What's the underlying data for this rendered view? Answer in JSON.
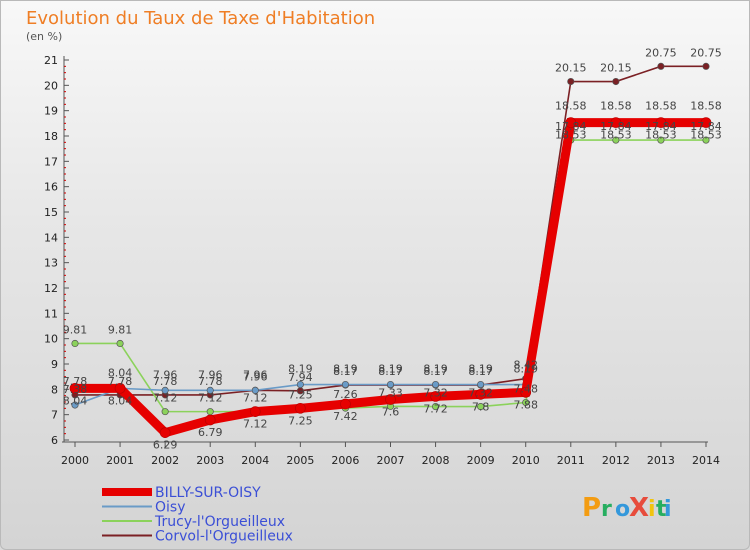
{
  "title": "Evolution du Taux de Taxe d'Habitation",
  "unit": "(en %)",
  "logo": {
    "text": "ProXiti",
    "letters": [
      "P",
      "r",
      "o",
      "X",
      "i",
      "t",
      "i"
    ],
    "colors": [
      "#f39c12",
      "#27ae60",
      "#3498db",
      "#e74c3c",
      "#f1c40f",
      "#27ae60",
      "#3498db"
    ]
  },
  "chart_data": {
    "type": "line",
    "title": "Evolution du Taux de Taxe d'Habitation",
    "ylabel": "(en %)",
    "xlabel": "",
    "ylim": [
      6,
      21
    ],
    "grid": false,
    "legend_position": "bottom-left",
    "categories": [
      "2000",
      "2001",
      "2002",
      "2003",
      "2004",
      "2005",
      "2006",
      "2007",
      "2008",
      "2009",
      "2010",
      "2011",
      "2012",
      "2013",
      "2014"
    ],
    "yticks": [
      "6",
      "7",
      "8",
      "9",
      "10",
      "11",
      "12",
      "13",
      "14",
      "15",
      "16",
      "17",
      "18",
      "19",
      "20",
      "21"
    ],
    "series": [
      {
        "name": "Corvol-l'Orgueilleux",
        "color": "#7b2024",
        "values": [
          7.78,
          7.78,
          7.78,
          7.78,
          7.96,
          7.94,
          8.17,
          8.17,
          8.17,
          8.17,
          8.42,
          20.15,
          20.15,
          20.75,
          20.75
        ],
        "labels": [
          "7.78",
          "7.78",
          "7.78",
          "7.78",
          "7.96",
          "7.94",
          "8.17",
          "8.17",
          "8.17",
          "8.17",
          "8.42",
          "20.15",
          "20.15",
          "20.75",
          "20.75"
        ]
      },
      {
        "name": "Trucy-l'Orgueilleux",
        "color": "#8bd25b",
        "values": [
          9.81,
          9.81,
          7.12,
          7.12,
          7.12,
          7.25,
          7.26,
          7.33,
          7.32,
          7.32,
          7.48,
          17.84,
          17.84,
          17.84,
          17.84
        ],
        "labels": [
          "9.81",
          "9.81",
          "7.12",
          "7.12",
          "7.12",
          "7.25",
          "7.26",
          "7.33",
          "7.32",
          "7.32",
          "7.48",
          "17.84",
          "17.84",
          "17.84",
          "17.84"
        ]
      },
      {
        "name": "Oisy",
        "color": "#6a9bc7",
        "values": [
          7.38,
          8.04,
          7.96,
          7.96,
          7.96,
          8.19,
          8.19,
          8.19,
          8.19,
          8.19,
          8.19,
          18.58,
          18.58,
          18.58,
          18.58
        ],
        "labels": [
          "7.38",
          "8.04",
          "7.96",
          "7.96",
          "7.96",
          "8.19",
          "8.19",
          "8.19",
          "8.19",
          "8.19",
          "8.19",
          "18.58",
          "18.58",
          "18.58",
          "18.58"
        ]
      },
      {
        "name": "BILLY-SUR-OISY",
        "color": "#e60000",
        "values": [
          8.04,
          8.04,
          6.29,
          6.79,
          7.12,
          7.25,
          7.42,
          7.6,
          7.72,
          7.8,
          7.88,
          18.53,
          18.53,
          18.53,
          18.53
        ],
        "labels": [
          "8.04",
          "8.04",
          "6.29",
          "6.79",
          "7.12",
          "7.25",
          "7.42",
          "7.6",
          "7.72",
          "7.8",
          "7.88",
          "18.53",
          "18.53",
          "18.53",
          "18.53"
        ]
      }
    ],
    "legend": [
      {
        "name": "BILLY-SUR-OISY",
        "color": "#e60000",
        "weight": "thick"
      },
      {
        "name": "Oisy",
        "color": "#6a9bc7",
        "weight": "thin"
      },
      {
        "name": "Trucy-l'Orgueilleux",
        "color": "#8bd25b",
        "weight": "thin"
      },
      {
        "name": "Corvol-l'Orgueilleux",
        "color": "#7b2024",
        "weight": "thin"
      }
    ]
  }
}
